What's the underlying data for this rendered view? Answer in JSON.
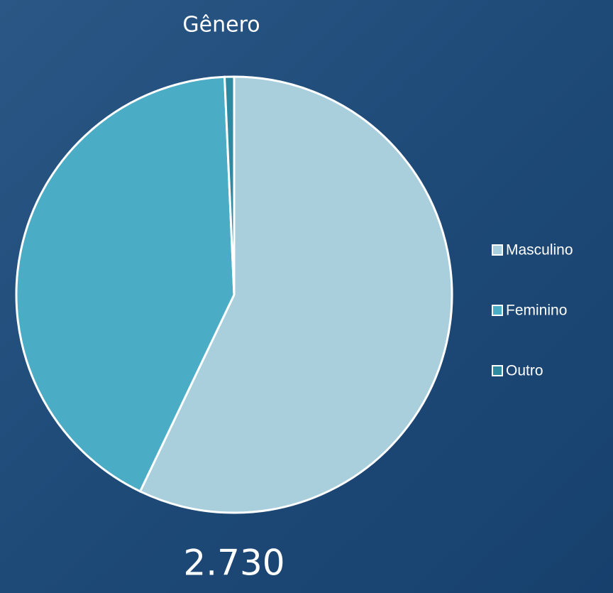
{
  "chart_data": {
    "type": "pie",
    "title": "Gênero",
    "total_label": "2.730",
    "categories": [
      "Masculino",
      "Feminino",
      "Outro"
    ],
    "values": [
      57.1,
      42.2,
      0.7
    ],
    "colors": [
      "#a9cfdc",
      "#4bacc6",
      "#2e8aa0"
    ],
    "legend": "right"
  }
}
